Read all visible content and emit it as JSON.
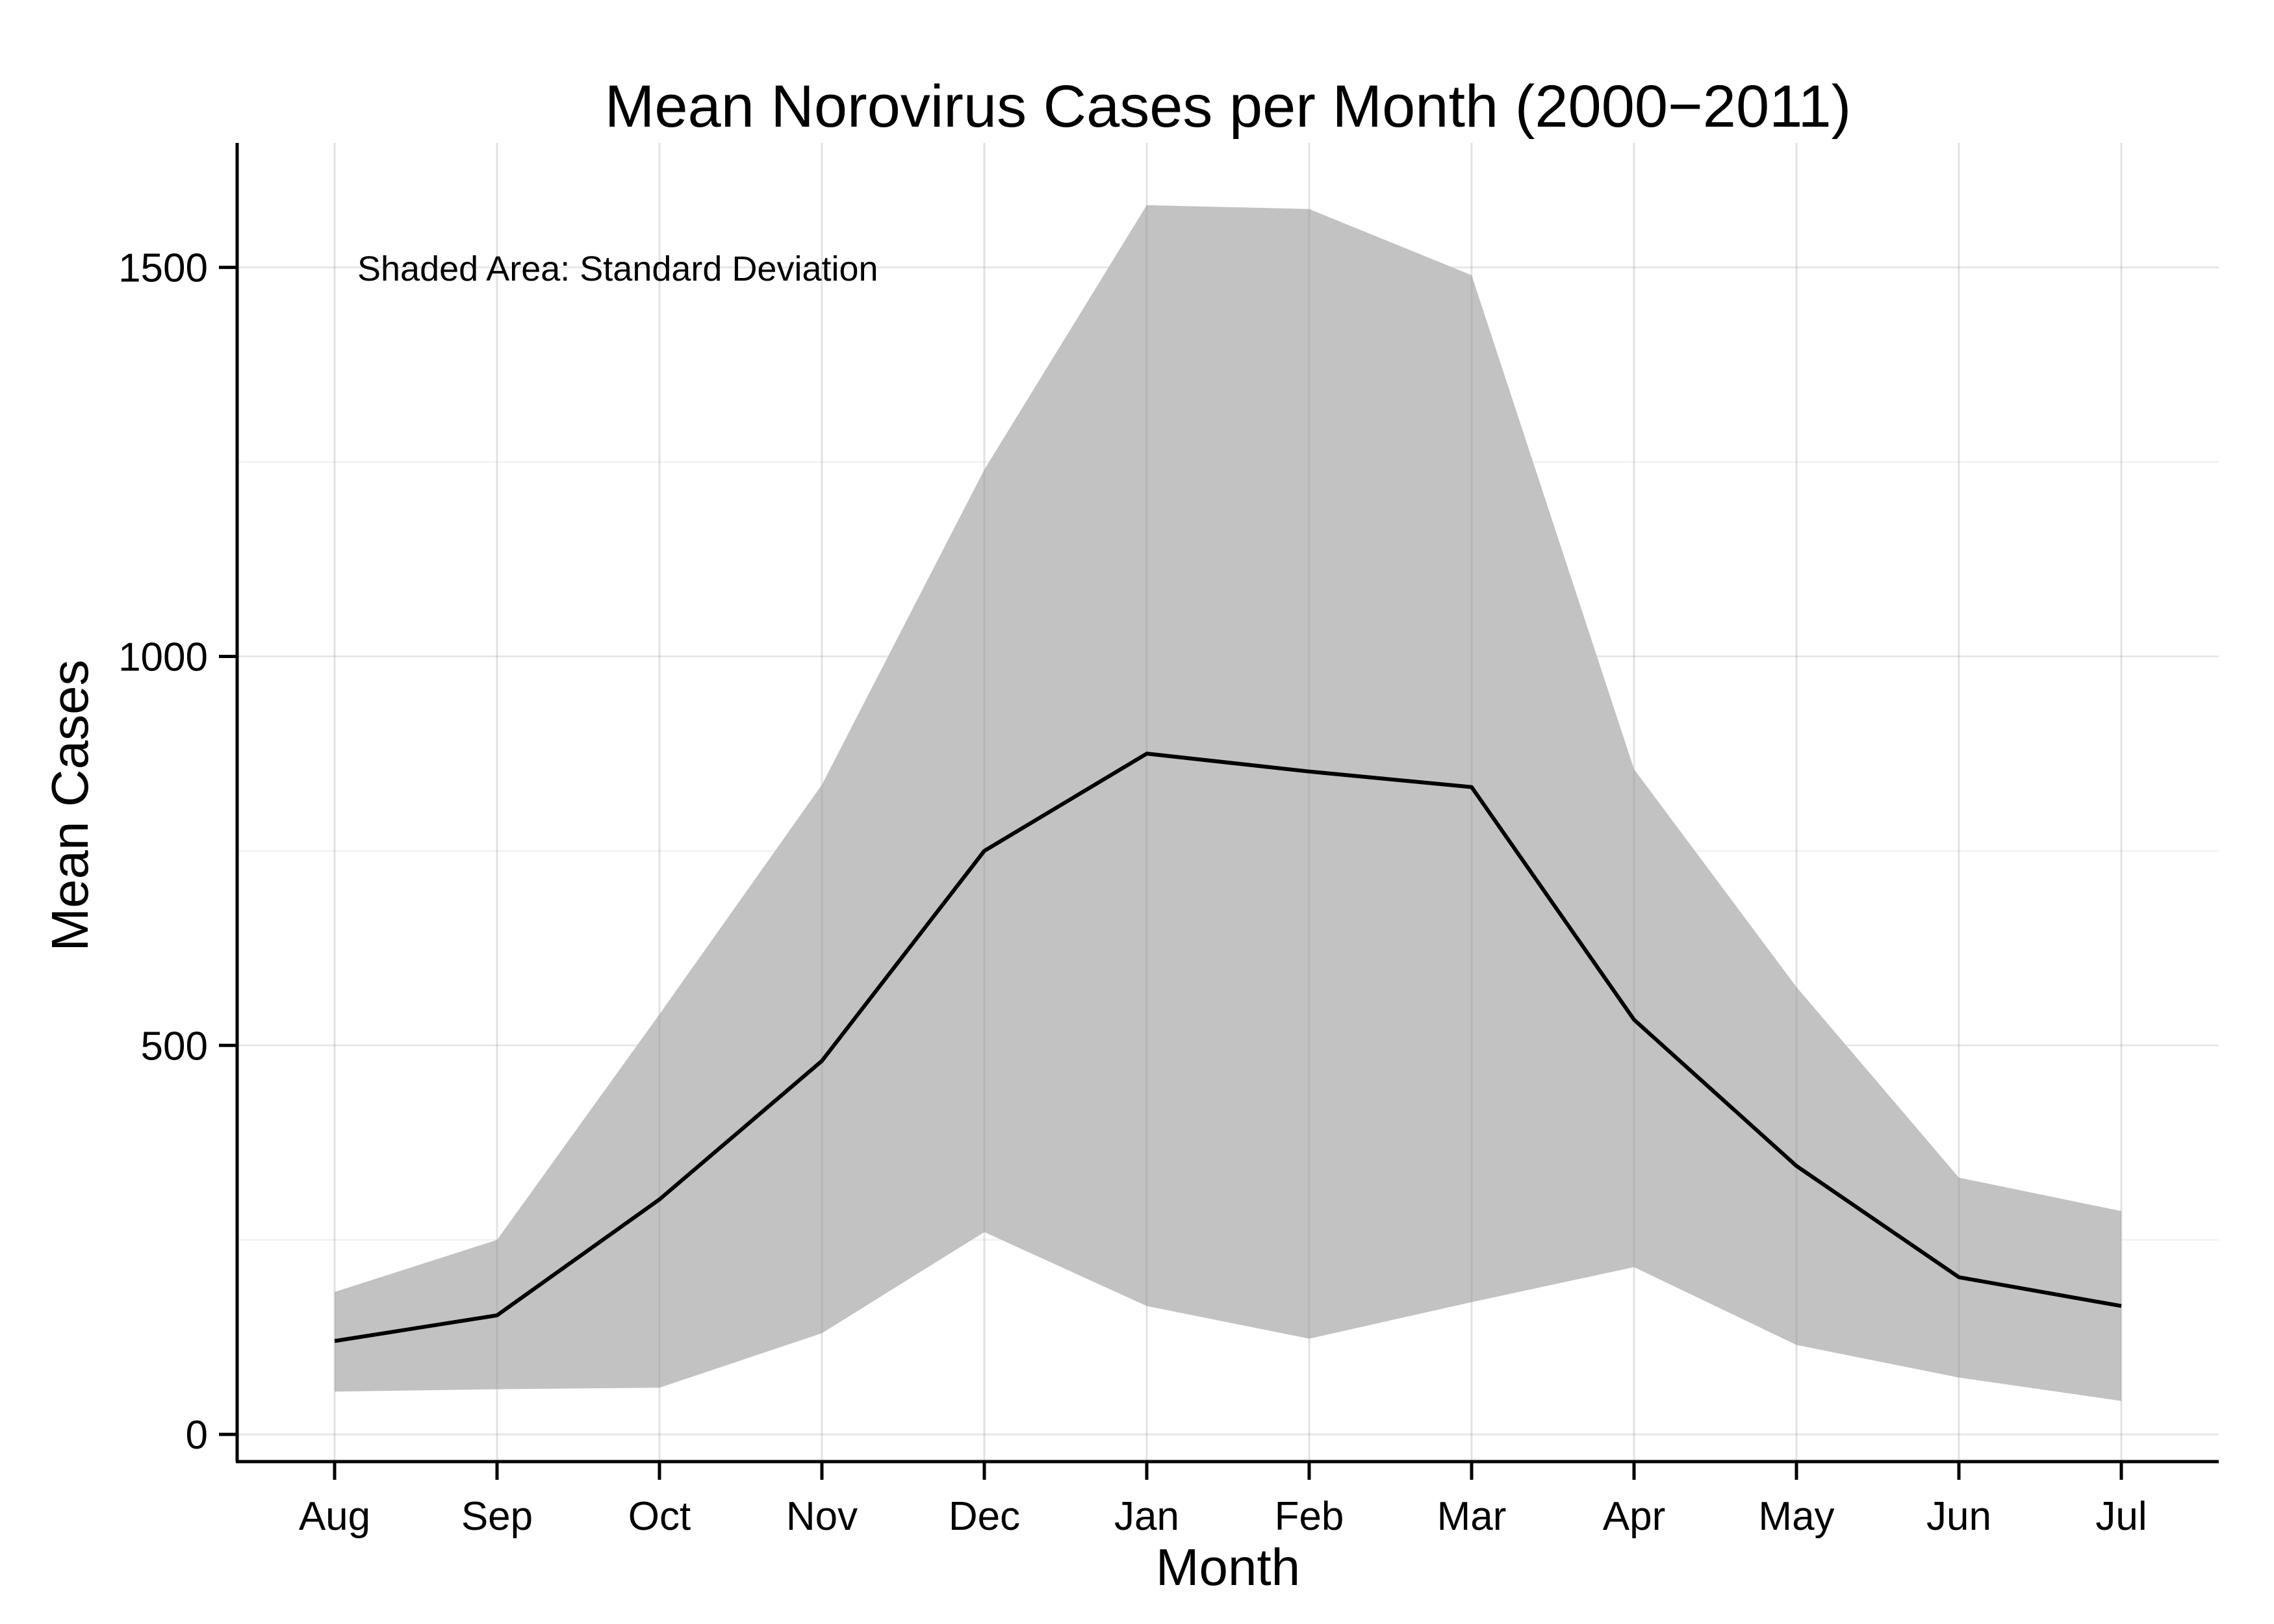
{
  "chart_data": {
    "type": "line",
    "title": "Mean Norovirus Cases per Month (2000−2011)",
    "xlabel": "Month",
    "ylabel": "Mean Cases",
    "annotation": "Shaded Area: Standard Deviation",
    "categories": [
      "Aug",
      "Sep",
      "Oct",
      "Nov",
      "Dec",
      "Jan",
      "Feb",
      "Mar",
      "Apr",
      "May",
      "Jun",
      "Jul"
    ],
    "series": [
      {
        "values": [
          120,
          153,
          302,
          480,
          750,
          875,
          852,
          832,
          533,
          345,
          202,
          165
        ]
      }
    ],
    "band": {
      "upper": [
        183,
        250,
        540,
        835,
        1240,
        1580,
        1575,
        1490,
        855,
        575,
        330,
        287
      ],
      "lower": [
        55,
        58,
        60,
        130,
        260,
        165,
        123,
        170,
        215,
        115,
        73,
        43
      ]
    },
    "ylim": [
      -35,
      1660
    ],
    "yticks": [
      0,
      500,
      1000,
      1500
    ],
    "grid": true,
    "colors": {
      "line": "#000000",
      "band": "#c2c2c2",
      "grid": "#e8e8e8"
    }
  }
}
